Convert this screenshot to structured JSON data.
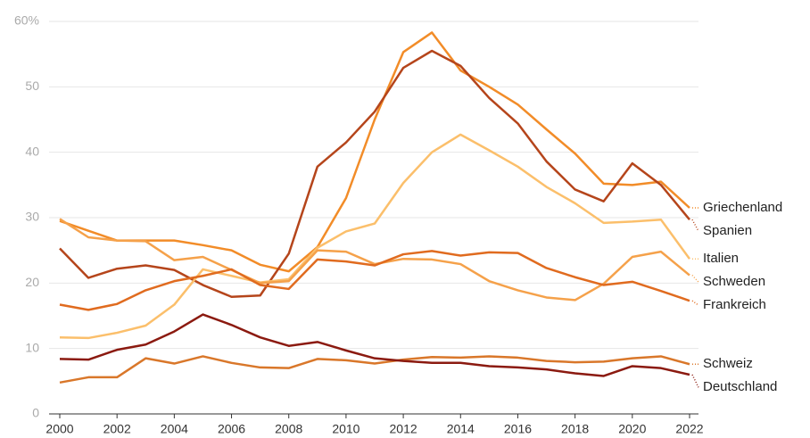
{
  "chart_data": {
    "type": "line",
    "x": [
      2000,
      2001,
      2002,
      2003,
      2004,
      2005,
      2006,
      2007,
      2008,
      2009,
      2010,
      2011,
      2012,
      2013,
      2014,
      2015,
      2016,
      2017,
      2018,
      2019,
      2020,
      2021,
      2022
    ],
    "xlim": [
      2000,
      2022
    ],
    "xticks": [
      2000,
      2002,
      2004,
      2006,
      2008,
      2010,
      2012,
      2014,
      2016,
      2018,
      2020,
      2022
    ],
    "ylim": [
      0,
      60
    ],
    "yticks": [
      0,
      10,
      20,
      30,
      40,
      50,
      {
        "value": 60,
        "label": "60%"
      }
    ],
    "grid": true,
    "series": [
      {
        "name": "Griechenland",
        "color": "#f28c28",
        "values": [
          29.5,
          28,
          26.5,
          26.5,
          26.5,
          25.8,
          25,
          22.8,
          21.8,
          25.5,
          33,
          45,
          55.3,
          58.3,
          52.5,
          50,
          47.3,
          43.5,
          39.8,
          35.2,
          35,
          35.5,
          31.5
        ]
      },
      {
        "name": "Spanien",
        "color": "#b5451b",
        "values": [
          25.3,
          20.8,
          22.2,
          22.7,
          22,
          19.7,
          17.9,
          18.1,
          24.5,
          37.8,
          41.5,
          46.2,
          52.9,
          55.5,
          53.2,
          48.3,
          44.4,
          38.6,
          34.3,
          32.5,
          38.3,
          35,
          29.7
        ]
      },
      {
        "name": "Italien",
        "color": "#fbbf6b",
        "values": [
          11.7,
          11.6,
          12.4,
          13.5,
          16.7,
          22.1,
          21.1,
          20.1,
          20.6,
          25.4,
          27.9,
          29.1,
          35.3,
          40,
          42.7,
          40.3,
          37.8,
          34.7,
          32.2,
          29.2,
          29.4,
          29.7,
          23.7
        ]
      },
      {
        "name": "Schweden",
        "color": "#f5a14a",
        "values": [
          29.8,
          27,
          26.5,
          26.4,
          23.5,
          24,
          22,
          20,
          20.3,
          25,
          24.8,
          22.9,
          23.7,
          23.6,
          22.9,
          20.3,
          18.9,
          17.8,
          17.4,
          19.9,
          24,
          24.8,
          21.2
        ]
      },
      {
        "name": "Frankreich",
        "color": "#e06b1f",
        "values": [
          16.7,
          15.9,
          16.8,
          18.9,
          20.3,
          21.1,
          22.1,
          19.7,
          19.1,
          23.6,
          23.3,
          22.7,
          24.4,
          24.9,
          24.2,
          24.7,
          24.6,
          22.3,
          20.9,
          19.7,
          20.2,
          18.8,
          17.3
        ]
      },
      {
        "name": "Schweiz",
        "color": "#d9772a",
        "values": [
          4.8,
          5.6,
          5.6,
          8.5,
          7.7,
          8.8,
          7.8,
          7.1,
          7,
          8.4,
          8.2,
          7.7,
          8.3,
          8.7,
          8.6,
          8.8,
          8.6,
          8.1,
          7.9,
          8,
          8.5,
          8.8,
          7.6
        ]
      },
      {
        "name": "Deutschland",
        "color": "#8b1a10",
        "values": [
          8.4,
          8.3,
          9.8,
          10.6,
          12.6,
          15.2,
          13.6,
          11.7,
          10.4,
          11,
          9.7,
          8.5,
          8.1,
          7.8,
          7.8,
          7.3,
          7.1,
          6.8,
          6.2,
          5.8,
          7.3,
          7,
          6
        ]
      }
    ]
  }
}
